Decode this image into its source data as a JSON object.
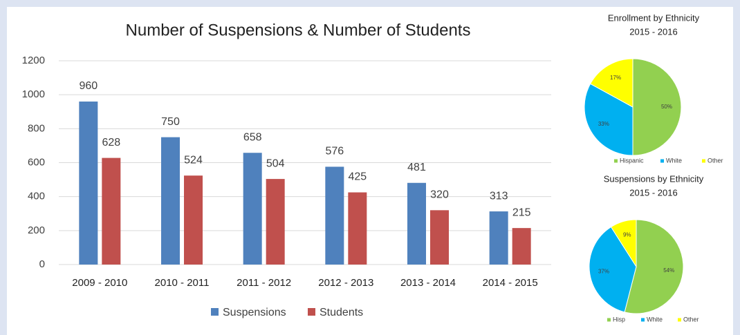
{
  "chart_data": [
    {
      "type": "bar",
      "title": "Number of Suspensions & Number of Students",
      "categories": [
        "2009 - 2010",
        "2010 - 2011",
        "2011 - 2012",
        "2012 - 2013",
        "2013 - 2014",
        "2014 - 2015"
      ],
      "series": [
        {
          "name": "Suspensions",
          "color": "#4f81bd",
          "values": [
            960,
            750,
            658,
            576,
            481,
            313
          ]
        },
        {
          "name": "Students",
          "color": "#c0504d",
          "values": [
            628,
            524,
            504,
            425,
            320,
            215
          ]
        }
      ],
      "ylim": [
        0,
        1200
      ],
      "yticks": [
        0,
        200,
        400,
        600,
        800,
        1000,
        1200
      ],
      "grid": true,
      "legend": "bottom"
    },
    {
      "type": "pie",
      "title": "Enrollment by Ethnicity",
      "subtitle": "2015 - 2016",
      "categories": [
        "Hispanic",
        "White",
        "Other"
      ],
      "values": [
        50,
        33,
        17
      ],
      "value_labels": [
        "50%",
        "33%",
        "17%"
      ],
      "colors": [
        "#92d050",
        "#00b0f0",
        "#ffff00"
      ],
      "legend": "bottom"
    },
    {
      "type": "pie",
      "title": "Suspensions by Ethnicity",
      "subtitle": "2015 - 2016",
      "categories": [
        "Hisp",
        "White",
        "Other"
      ],
      "values": [
        54,
        37,
        9
      ],
      "value_labels": [
        "54%",
        "37%",
        "9%"
      ],
      "colors": [
        "#92d050",
        "#00b0f0",
        "#ffff00"
      ],
      "legend": "bottom"
    }
  ]
}
